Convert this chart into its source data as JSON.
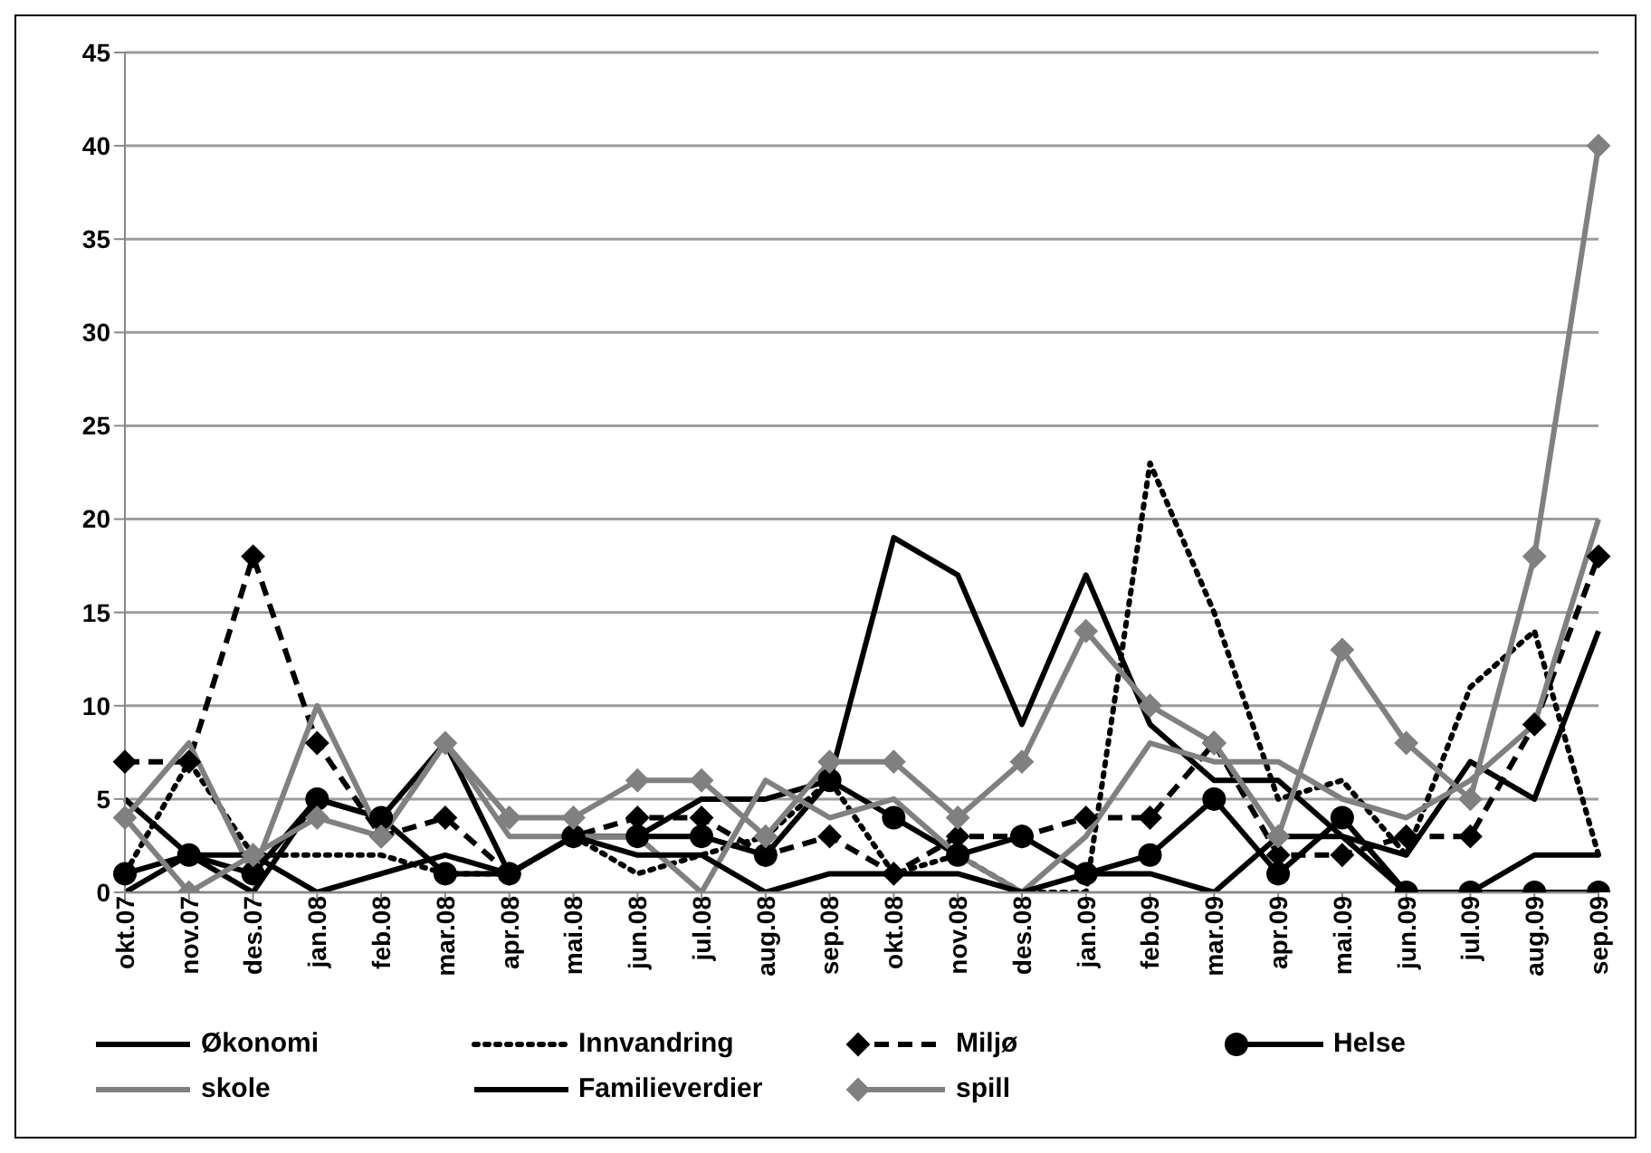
{
  "chart_data": {
    "type": "line",
    "categories": [
      "okt.07",
      "nov.07",
      "des.07",
      "jan.08",
      "feb.08",
      "mar.08",
      "apr.08",
      "mai.08",
      "jun.08",
      "jul.08",
      "aug.08",
      "sep.08",
      "okt.08",
      "nov.08",
      "des.08",
      "jan.09",
      "feb.09",
      "mar.09",
      "apr.09",
      "mai.09",
      "jun.09",
      "jul.09",
      "aug.09",
      "sep.09"
    ],
    "series": [
      {
        "name": "Økonomi",
        "color": "#000000",
        "marker": "none",
        "line_style": "solid",
        "values": [
          5,
          2,
          0,
          5,
          4,
          8,
          1,
          3,
          3,
          5,
          5,
          6,
          19,
          17,
          9,
          17,
          9,
          6,
          6,
          3,
          2,
          7,
          5,
          14
        ]
      },
      {
        "name": "Innvandring",
        "color": "#000000",
        "marker": "none",
        "line_style": "dotted",
        "values": [
          1,
          7,
          2,
          2,
          2,
          1,
          1,
          3,
          1,
          2,
          3,
          6,
          1,
          2,
          0,
          0,
          23,
          15,
          5,
          6,
          2,
          11,
          14,
          2
        ]
      },
      {
        "name": "Miljø",
        "color": "#000000",
        "marker": "diamond",
        "line_style": "dashed",
        "values": [
          7,
          7,
          18,
          8,
          3,
          4,
          1,
          3,
          4,
          4,
          2,
          3,
          1,
          3,
          3,
          4,
          4,
          8,
          2,
          2,
          3,
          3,
          9,
          18
        ]
      },
      {
        "name": "Helse",
        "color": "#000000",
        "marker": "circle",
        "line_style": "solid",
        "values": [
          1,
          2,
          1,
          5,
          4,
          1,
          1,
          3,
          3,
          3,
          2,
          6,
          4,
          2,
          3,
          1,
          2,
          5,
          1,
          4,
          0,
          0,
          0,
          0
        ]
      },
      {
        "name": "skole",
        "color": "#808080",
        "marker": "none",
        "line_style": "solid",
        "values": [
          4,
          8,
          1,
          10,
          3,
          8,
          3,
          3,
          3,
          0,
          6,
          4,
          5,
          2,
          0,
          3,
          8,
          7,
          7,
          5,
          4,
          6,
          9,
          20
        ]
      },
      {
        "name": "Familieverdier",
        "color": "#000000",
        "marker": "none",
        "line_style": "solid",
        "values": [
          0,
          2,
          2,
          0,
          1,
          2,
          1,
          3,
          2,
          2,
          0,
          1,
          1,
          1,
          0,
          1,
          1,
          0,
          3,
          3,
          0,
          0,
          2,
          2
        ]
      },
      {
        "name": "spill",
        "color": "#808080",
        "marker": "diamond",
        "line_style": "solid",
        "values": [
          4,
          0,
          2,
          4,
          3,
          8,
          4,
          4,
          6,
          6,
          3,
          7,
          7,
          4,
          7,
          14,
          10,
          8,
          3,
          13,
          8,
          5,
          18,
          40
        ]
      }
    ],
    "ylim": [
      0,
      45
    ],
    "yticks": [
      0,
      5,
      10,
      15,
      20,
      25,
      30,
      35,
      40,
      45
    ],
    "grid": "y",
    "legend": "bottom"
  }
}
